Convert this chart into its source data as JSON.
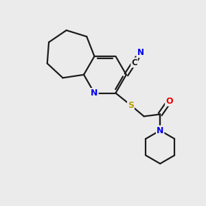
{
  "bg_color": "#ebebeb",
  "bond_color": "#1a1a1a",
  "bond_width": 1.6,
  "atom_colors": {
    "N": "#0000ee",
    "S": "#b8a000",
    "O": "#ee0000",
    "C": "#1a1a1a"
  },
  "figsize": [
    3.0,
    3.0
  ],
  "dpi": 100
}
